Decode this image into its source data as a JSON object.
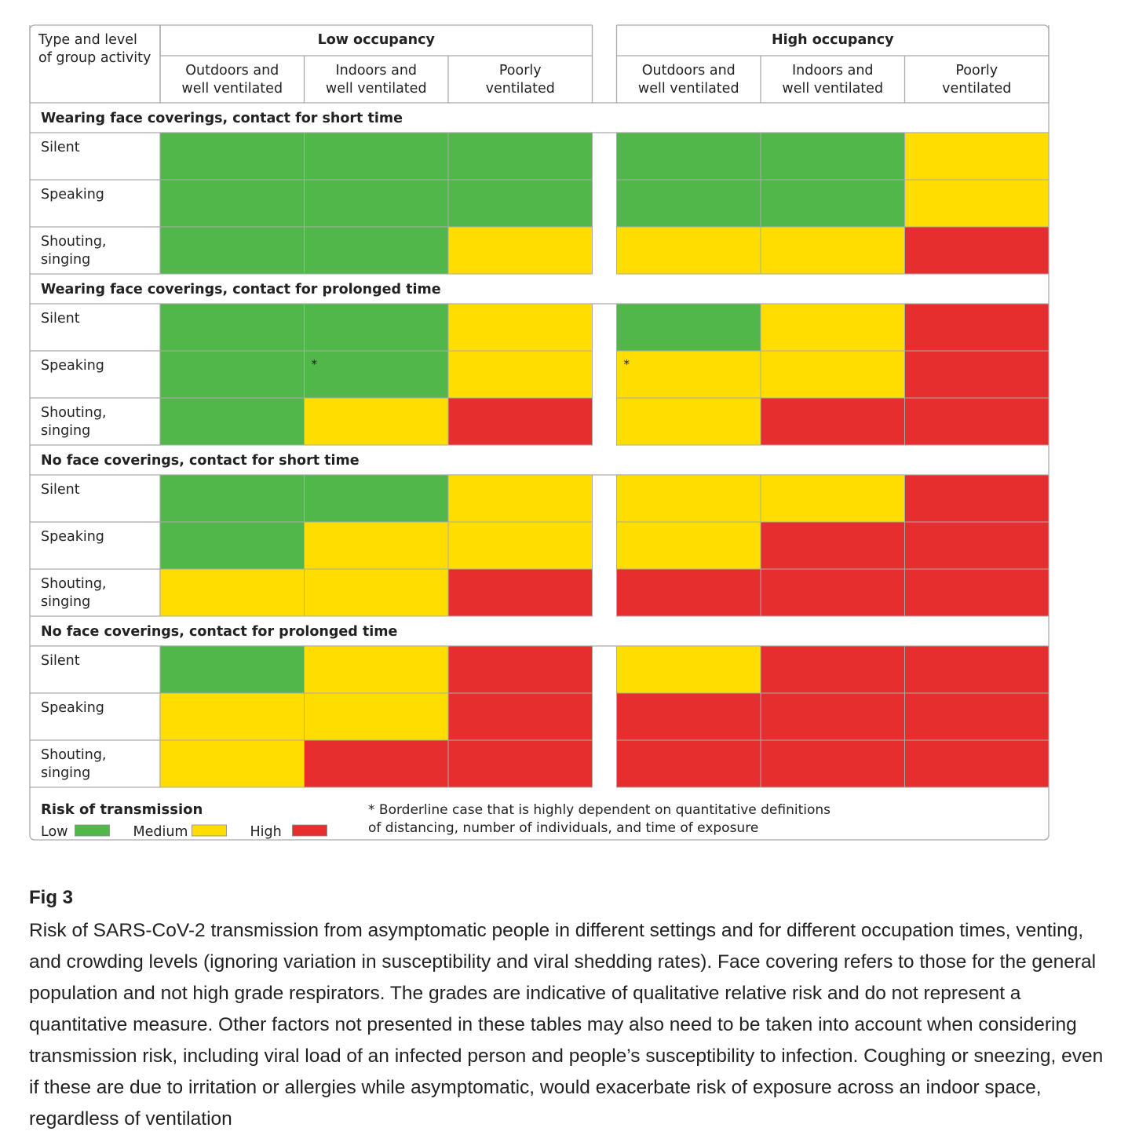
{
  "colors": {
    "low": "#52b74b",
    "medium": "#ffdd00",
    "high": "#e62e2e",
    "grid": "#aaaaaa",
    "text": "#222222"
  },
  "chart_data": {
    "type": "table",
    "title": "Risk of transmission",
    "corner_header": [
      "Type and level",
      "of group activity"
    ],
    "groups": [
      {
        "label": "Low occupancy",
        "columns": [
          [
            "Outdoors and",
            "well ventilated"
          ],
          [
            "Indoors and",
            "well ventilated"
          ],
          [
            "Poorly",
            "ventilated"
          ]
        ]
      },
      {
        "label": "High occupancy",
        "columns": [
          [
            "Outdoors and",
            "well ventilated"
          ],
          [
            "Indoors and",
            "well ventilated"
          ],
          [
            "Poorly",
            "ventilated"
          ]
        ]
      }
    ],
    "sections": [
      {
        "label": "Wearing face coverings, contact for short time",
        "rows": [
          {
            "label": [
              "Silent"
            ],
            "values": [
              "Low",
              "Low",
              "Low",
              "Low",
              "Low",
              "Medium"
            ]
          },
          {
            "label": [
              "Speaking"
            ],
            "values": [
              "Low",
              "Low",
              "Low",
              "Low",
              "Low",
              "Medium"
            ]
          },
          {
            "label": [
              "Shouting,",
              "singing"
            ],
            "values": [
              "Low",
              "Low",
              "Medium",
              "Medium",
              "Medium",
              "High"
            ]
          }
        ]
      },
      {
        "label": "Wearing face coverings, contact for prolonged time",
        "rows": [
          {
            "label": [
              "Silent"
            ],
            "values": [
              "Low",
              "Low",
              "Medium",
              "Low",
              "Medium",
              "High"
            ]
          },
          {
            "label": [
              "Speaking"
            ],
            "values": [
              "Low",
              "Low",
              "Medium",
              "Medium",
              "Medium",
              "High"
            ],
            "borderline": [
              1,
              3
            ]
          },
          {
            "label": [
              "Shouting,",
              "singing"
            ],
            "values": [
              "Low",
              "Medium",
              "High",
              "Medium",
              "High",
              "High"
            ]
          }
        ]
      },
      {
        "label": "No face coverings, contact for short time",
        "rows": [
          {
            "label": [
              "Silent"
            ],
            "values": [
              "Low",
              "Low",
              "Medium",
              "Medium",
              "Medium",
              "High"
            ]
          },
          {
            "label": [
              "Speaking"
            ],
            "values": [
              "Low",
              "Medium",
              "Medium",
              "Medium",
              "High",
              "High"
            ]
          },
          {
            "label": [
              "Shouting,",
              "singing"
            ],
            "values": [
              "Medium",
              "Medium",
              "High",
              "High",
              "High",
              "High"
            ]
          }
        ]
      },
      {
        "label": "No face coverings, contact for prolonged time",
        "rows": [
          {
            "label": [
              "Silent"
            ],
            "values": [
              "Low",
              "Medium",
              "High",
              "Medium",
              "High",
              "High"
            ]
          },
          {
            "label": [
              "Speaking"
            ],
            "values": [
              "Medium",
              "Medium",
              "High",
              "High",
              "High",
              "High"
            ]
          },
          {
            "label": [
              "Shouting,",
              "singing"
            ],
            "values": [
              "Medium",
              "High",
              "High",
              "High",
              "High",
              "High"
            ]
          }
        ]
      }
    ],
    "borderline_marker": "*",
    "legend": {
      "title": "Risk of transmission",
      "items": [
        {
          "label": "Low",
          "level": "Low"
        },
        {
          "label": "Medium",
          "level": "Medium"
        },
        {
          "label": "High",
          "level": "High"
        }
      ]
    },
    "footnote": [
      "* Borderline case that is highly dependent on quantitative definitions",
      "of distancing, number of individuals, and time of exposure"
    ]
  },
  "caption": {
    "label": "Fig 3",
    "text": "Risk of SARS-CoV-2 transmission from asymptomatic people in different settings and for different occupation times, venting, and crowding levels (ignoring variation in susceptibility and viral shedding rates). Face covering refers to those for the general population and not high grade respirators. The grades are indicative of qualitative relative risk and do not represent a quantitative measure. Other factors not presented in these tables may also need to be taken into account when considering transmission risk, including viral load of an infected person and people’s susceptibility to infection. Coughing or sneezing, even if these are due to irritation or allergies while asymptomatic, would exacerbate risk of exposure across an indoor space, regardless of ventilation"
  }
}
